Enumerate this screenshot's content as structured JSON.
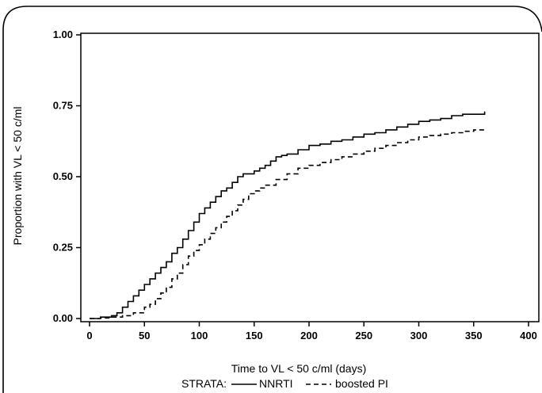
{
  "chart_data": {
    "type": "line",
    "subtype": "kaplan-meier step plot",
    "title": "",
    "xlabel": "Time to VL < 50 c/ml (days)",
    "ylabel": "Proportion with VL < 50 c/ml",
    "xlim": [
      0,
      400
    ],
    "ylim": [
      0,
      1
    ],
    "x_ticks": [
      0,
      50,
      100,
      150,
      200,
      250,
      300,
      350,
      400
    ],
    "y_ticks": [
      "0.00",
      "0.25",
      "0.50",
      "0.75",
      "1.00"
    ],
    "grid": false,
    "legend": {
      "position": "bottom",
      "prefix": "STRATA:",
      "entries": [
        {
          "label": "NNRTI",
          "style": "solid"
        },
        {
          "label": "boosted PI",
          "style": "dashed"
        }
      ]
    },
    "series": [
      {
        "name": "NNRTI",
        "style": "solid",
        "color": "#000000",
        "x": [
          0,
          10,
          20,
          25,
          30,
          35,
          40,
          45,
          50,
          55,
          60,
          65,
          70,
          75,
          80,
          85,
          90,
          95,
          100,
          105,
          110,
          115,
          120,
          125,
          130,
          135,
          140,
          145,
          150,
          155,
          160,
          165,
          170,
          175,
          180,
          190,
          200,
          210,
          220,
          230,
          240,
          250,
          260,
          270,
          280,
          290,
          300,
          310,
          320,
          330,
          340,
          350,
          360
        ],
        "y": [
          0.0,
          0.005,
          0.01,
          0.02,
          0.04,
          0.06,
          0.08,
          0.1,
          0.12,
          0.14,
          0.16,
          0.18,
          0.2,
          0.23,
          0.25,
          0.28,
          0.31,
          0.34,
          0.37,
          0.39,
          0.41,
          0.43,
          0.45,
          0.46,
          0.48,
          0.5,
          0.51,
          0.51,
          0.52,
          0.53,
          0.54,
          0.555,
          0.57,
          0.575,
          0.58,
          0.595,
          0.61,
          0.615,
          0.625,
          0.63,
          0.64,
          0.65,
          0.655,
          0.665,
          0.675,
          0.685,
          0.695,
          0.7,
          0.705,
          0.715,
          0.72,
          0.72,
          0.73
        ]
      },
      {
        "name": "boosted PI",
        "style": "dashed",
        "color": "#000000",
        "x": [
          0,
          10,
          20,
          30,
          40,
          50,
          55,
          60,
          65,
          70,
          75,
          80,
          85,
          90,
          95,
          100,
          105,
          110,
          115,
          120,
          125,
          130,
          135,
          140,
          145,
          150,
          155,
          160,
          170,
          180,
          190,
          200,
          210,
          220,
          230,
          240,
          250,
          260,
          270,
          280,
          290,
          300,
          310,
          320,
          330,
          340,
          350,
          360
        ],
        "y": [
          0.0,
          0.002,
          0.005,
          0.01,
          0.02,
          0.04,
          0.05,
          0.07,
          0.09,
          0.11,
          0.14,
          0.16,
          0.19,
          0.22,
          0.24,
          0.26,
          0.28,
          0.3,
          0.32,
          0.34,
          0.36,
          0.38,
          0.4,
          0.42,
          0.44,
          0.45,
          0.46,
          0.47,
          0.49,
          0.51,
          0.53,
          0.54,
          0.55,
          0.56,
          0.57,
          0.58,
          0.59,
          0.6,
          0.61,
          0.62,
          0.63,
          0.64,
          0.645,
          0.65,
          0.655,
          0.66,
          0.665,
          0.67
        ]
      }
    ]
  }
}
